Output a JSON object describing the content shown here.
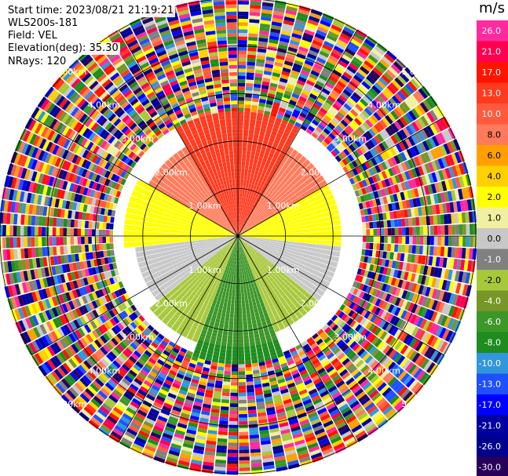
{
  "info": {
    "start_time": "Start time: 2023/08/21 21:19:21",
    "instrument": "WLS200s-181",
    "field": "Field: VEL",
    "elevation": "Elevation(deg): 35.30",
    "nrays": "NRays: 120"
  },
  "colorbar": {
    "unit": "m/s",
    "ticks": [
      "26.0",
      "21.0",
      "17.0",
      "13.0",
      "10.0",
      "8.0",
      "6.0",
      "4.0",
      "2.0",
      "1.0",
      "0.0",
      "-1.0",
      "-2.0",
      "-4.0",
      "-6.0",
      "-8.0",
      "-10.0",
      "-13.0",
      "-17.0",
      "-21.0",
      "-26.0",
      "-30.0"
    ],
    "colors": [
      "#ff2a9e",
      "#ff0050",
      "#ff1400",
      "#ff3a1e",
      "#ff5a3c",
      "#ff7a5a",
      "#ffa000",
      "#ffd000",
      "#ffff00",
      "#f0f0a0",
      "#c8c8c8",
      "#808080",
      "#a8c83c",
      "#789628",
      "#3c9628",
      "#1e8c1e",
      "#3296dc",
      "#1e50ff",
      "#0000ff",
      "#0000a0",
      "#00008c",
      "#28005a"
    ]
  },
  "chart_data": {
    "type": "heatmap",
    "projection": "polar-ppi",
    "nrays": 120,
    "range_rings_km": [
      "1.00km",
      "2.00km",
      "3.00km",
      "4.00km",
      "5.00km"
    ],
    "range_rings_values_km": [
      1,
      2,
      3,
      4,
      5
    ],
    "max_range_km": 5.0,
    "velocity_units": "m/s",
    "velocity_range": [
      -30,
      26
    ],
    "sectors": [
      {
        "azimuth_deg": [
          330,
          30
        ],
        "range_km": [
          0.0,
          2.6
        ],
        "velocity": 13.0
      },
      {
        "azimuth_deg": [
          30,
          70
        ],
        "range_km": [
          0.0,
          2.2
        ],
        "velocity": 8.0
      },
      {
        "azimuth_deg": [
          290,
          330
        ],
        "range_km": [
          0.0,
          2.2
        ],
        "velocity": 8.0
      },
      {
        "azimuth_deg": [
          60,
          95
        ],
        "range_km": [
          0.0,
          2.2
        ],
        "velocity": 2.0
      },
      {
        "azimuth_deg": [
          265,
          300
        ],
        "range_km": [
          0.0,
          2.4
        ],
        "velocity": 2.0
      },
      {
        "azimuth_deg": [
          95,
          130
        ],
        "range_km": [
          0.0,
          2.2
        ],
        "velocity": 0.0
      },
      {
        "azimuth_deg": [
          230,
          265
        ],
        "range_km": [
          0.0,
          2.2
        ],
        "velocity": 0.0
      },
      {
        "azimuth_deg": [
          130,
          160
        ],
        "range_km": [
          0.0,
          2.2
        ],
        "velocity": -2.0
      },
      {
        "azimuth_deg": [
          200,
          230
        ],
        "range_km": [
          0.0,
          2.4
        ],
        "velocity": -2.0
      },
      {
        "azimuth_deg": [
          160,
          200
        ],
        "range_km": [
          0.0,
          2.3
        ],
        "velocity": -6.0
      },
      {
        "azimuth_deg": [
          160,
          200
        ],
        "range_km": [
          2.3,
          2.7
        ],
        "velocity": -8.0
      }
    ],
    "noise_beyond_km": 2.6
  }
}
